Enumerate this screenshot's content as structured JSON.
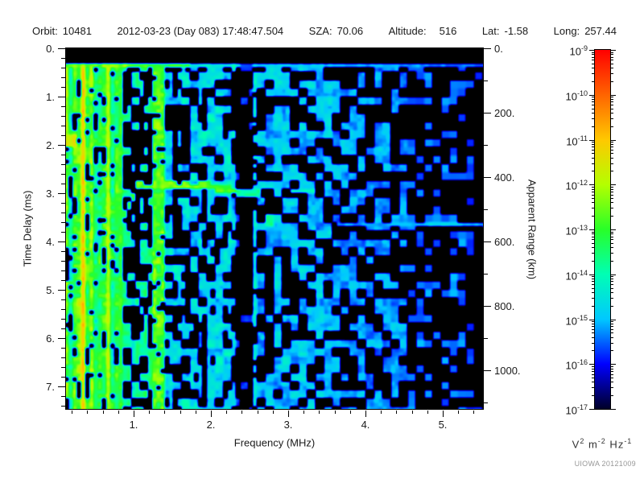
{
  "header": {
    "segments": [
      {
        "label": "Orbit:",
        "value": "10481",
        "wide": false
      },
      {
        "label": "",
        "value": "2012-03-23 (Day 083) 17:48:47.504",
        "wide": false
      },
      {
        "label": "SZA:",
        "value": "70.06",
        "wide": false
      },
      {
        "label": "Altitude:",
        "value": "516",
        "wide": true
      },
      {
        "label": "Lat:",
        "value": "-1.58",
        "wide": false
      },
      {
        "label": "Long:",
        "value": "257.44",
        "wide": false
      }
    ]
  },
  "chart_data": {
    "type": "heatmap",
    "title": "MARSIS-style radar sounder ionogram (spectrogram of received power vs frequency and time delay)",
    "xlabel": "Frequency (MHz)",
    "ylabel_left": "Time Delay (ms)",
    "ylabel_right": "Apparent Range (km)",
    "x_axis": {
      "min": 0.125,
      "max": 5.52,
      "major_ticks": [
        1,
        2,
        3,
        4,
        5
      ],
      "major_labels": [
        "1.",
        "2.",
        "3.",
        "4.",
        "5."
      ],
      "minor_step": 0.2
    },
    "y_axis_left": {
      "min": 0,
      "max": 7.4667,
      "major_ticks": [
        0,
        1,
        2,
        3,
        4,
        5,
        6,
        7
      ],
      "major_labels": [
        "0.",
        "1.",
        "2.",
        "3.",
        "4.",
        "5.",
        "6.",
        "7."
      ],
      "minor_step": 0.2
    },
    "y_axis_right": {
      "min": 0,
      "max": 1120,
      "major_ticks": [
        0,
        200,
        400,
        600,
        800,
        1000
      ],
      "major_labels": [
        "0.",
        "200.",
        "400.",
        "600.",
        "800.",
        "1000."
      ],
      "minor_step": 100
    },
    "colorbar": {
      "scale": "log",
      "tick_exponents": [
        -9,
        -10,
        -11,
        -12,
        -13,
        -14,
        -15,
        -16,
        -17
      ],
      "unit_parts": [
        {
          "base": "V",
          "exp": "2"
        },
        {
          "base": "m",
          "exp": "-2"
        },
        {
          "base": "Hz",
          "exp": "-1"
        }
      ],
      "colors_bottom_to_top": [
        "#000028",
        "#0000ff",
        "#00c8ff",
        "#00ffb4",
        "#28ff28",
        "#b4ff00",
        "#ffc800",
        "#ff6400",
        "#ff0000"
      ]
    },
    "features": [
      {
        "name": "top-black-band",
        "delay_ms": [
          0,
          0.3
        ]
      },
      {
        "name": "surface-noise-line",
        "delay_ms": 0.35,
        "freq_range_mhz": [
          0.125,
          5.52
        ]
      },
      {
        "name": "low-frequency-interference",
        "freq_range_mhz": [
          0.125,
          0.88
        ]
      },
      {
        "name": "yellow-interference-line",
        "freq_mhz": 0.34
      },
      {
        "name": "green-interference-line",
        "freq_mhz": 0.65
      },
      {
        "name": "cyan-interference-band",
        "freq_mhz": 0.83
      },
      {
        "name": "vertical-emission-band",
        "freq_mhz": 1.3
      },
      {
        "name": "ionospheric-echo-trace",
        "delay_ms": 2.9,
        "freq_range_mhz": [
          0.9,
          3.35
        ]
      },
      {
        "name": "second-echo-trace",
        "delay_ms": 3.62,
        "freq_range_mhz": [
          3.6,
          5.52
        ]
      },
      {
        "name": "black-gap-column",
        "freq_range_mhz": [
          2.33,
          2.52
        ]
      },
      {
        "name": "yellow-green-blob",
        "freq_mhz": 0.2,
        "delay_ms": 1.88
      }
    ]
  },
  "credit": "UIOWA 20121009"
}
